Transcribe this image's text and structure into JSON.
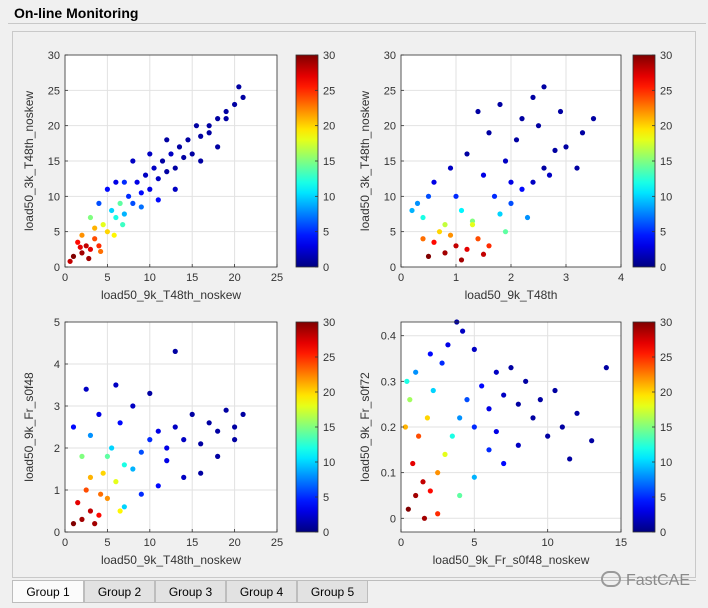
{
  "window": {
    "title": "On-line Monitoring"
  },
  "tabs": [
    {
      "label": "Group 1",
      "active": true
    },
    {
      "label": "Group 2",
      "active": false
    },
    {
      "label": "Group 3",
      "active": false
    },
    {
      "label": "Group 4",
      "active": false
    },
    {
      "label": "Group 5",
      "active": false
    }
  ],
  "watermark": {
    "text": "FastCAE"
  },
  "colormap": "jet",
  "chart_data": [
    {
      "type": "scatter",
      "title": "",
      "xlabel": "load50_9k_T48th_noskew",
      "ylabel": "load50_3k_T48th_noskew",
      "xlim": [
        0,
        25
      ],
      "ylim": [
        0,
        30
      ],
      "xticks": [
        0,
        5,
        10,
        15,
        20,
        25
      ],
      "yticks": [
        0,
        5,
        10,
        15,
        20,
        25,
        30
      ],
      "colorbar": {
        "min": 0,
        "max": 30,
        "ticks": [
          0,
          5,
          10,
          15,
          20,
          25,
          30
        ]
      },
      "grid": true,
      "points": [
        [
          2,
          2,
          29
        ],
        [
          2.5,
          3,
          28
        ],
        [
          3,
          2.5,
          27
        ],
        [
          1.5,
          3.5,
          26
        ],
        [
          3.5,
          4,
          24
        ],
        [
          2,
          4.5,
          22
        ],
        [
          4,
          3,
          25
        ],
        [
          1,
          1.5,
          30
        ],
        [
          5,
          5,
          20
        ],
        [
          4.5,
          6,
          18
        ],
        [
          6,
          7,
          12
        ],
        [
          5.5,
          8,
          10
        ],
        [
          7,
          7.5,
          9
        ],
        [
          6.5,
          9,
          14
        ],
        [
          8,
          9,
          6
        ],
        [
          7.5,
          10,
          5
        ],
        [
          9,
          10.5,
          4
        ],
        [
          8.5,
          12,
          3
        ],
        [
          10,
          11,
          3
        ],
        [
          9.5,
          13,
          2
        ],
        [
          11,
          12.5,
          2
        ],
        [
          10.5,
          14,
          2
        ],
        [
          12,
          13.5,
          1
        ],
        [
          11.5,
          15,
          1
        ],
        [
          13,
          14,
          1
        ],
        [
          12.5,
          16,
          2
        ],
        [
          14,
          15.5,
          1
        ],
        [
          13.5,
          17,
          1
        ],
        [
          15,
          16,
          1
        ],
        [
          14.5,
          18,
          1
        ],
        [
          16,
          18.5,
          1
        ],
        [
          15.5,
          20,
          1
        ],
        [
          17,
          20,
          1
        ],
        [
          18,
          21,
          1
        ],
        [
          19,
          22,
          1
        ],
        [
          20,
          23,
          1
        ],
        [
          21,
          24,
          1
        ],
        [
          20.5,
          25.5,
          1
        ],
        [
          6,
          12,
          3
        ],
        [
          4,
          9,
          6
        ],
        [
          3,
          7,
          15
        ],
        [
          8,
          15,
          2
        ],
        [
          5,
          11,
          4
        ],
        [
          12,
          18,
          1
        ],
        [
          10,
          16,
          2
        ],
        [
          7,
          12,
          5
        ],
        [
          3.5,
          5.5,
          21
        ],
        [
          2.8,
          1.2,
          29
        ],
        [
          1.8,
          2.8,
          27
        ],
        [
          4.2,
          2.2,
          23
        ],
        [
          0.6,
          0.8,
          28
        ],
        [
          5.8,
          4.5,
          19
        ],
        [
          6.8,
          6,
          13
        ],
        [
          9,
          8.5,
          7
        ],
        [
          11,
          9.5,
          4
        ],
        [
          13,
          11,
          2
        ],
        [
          16,
          15,
          1
        ],
        [
          18,
          17,
          1
        ],
        [
          17,
          19,
          1
        ],
        [
          19,
          21,
          1
        ]
      ]
    },
    {
      "type": "scatter",
      "title": "",
      "xlabel": "load50_9k_T48th",
      "ylabel": "load50_3k_T48th_noskew",
      "xlim": [
        0,
        4
      ],
      "ylim": [
        0,
        30
      ],
      "xticks": [
        0,
        1,
        2,
        3,
        4
      ],
      "yticks": [
        0,
        5,
        10,
        15,
        20,
        25,
        30
      ],
      "colorbar": {
        "min": 0,
        "max": 30,
        "ticks": [
          0,
          5,
          10,
          15,
          20,
          25,
          30
        ]
      },
      "grid": true,
      "points": [
        [
          0.8,
          2,
          29
        ],
        [
          1.0,
          3,
          28
        ],
        [
          1.2,
          2.5,
          27
        ],
        [
          0.6,
          3.5,
          26
        ],
        [
          1.4,
          4,
          24
        ],
        [
          0.9,
          4.5,
          22
        ],
        [
          1.6,
          3,
          25
        ],
        [
          0.5,
          1.5,
          30
        ],
        [
          1.1,
          1,
          29
        ],
        [
          0.7,
          5,
          20
        ],
        [
          1.3,
          6,
          18
        ],
        [
          0.4,
          7,
          12
        ],
        [
          1.8,
          7.5,
          10
        ],
        [
          0.3,
          9,
          8
        ],
        [
          2.0,
          9,
          6
        ],
        [
          1.0,
          10,
          5
        ],
        [
          2.2,
          11,
          4
        ],
        [
          0.6,
          12,
          3
        ],
        [
          1.5,
          13,
          3
        ],
        [
          2.4,
          12,
          2
        ],
        [
          0.9,
          14,
          2
        ],
        [
          1.9,
          15,
          2
        ],
        [
          2.6,
          14,
          1
        ],
        [
          1.2,
          16,
          1
        ],
        [
          2.8,
          16.5,
          1
        ],
        [
          2.1,
          18,
          1
        ],
        [
          3.0,
          17,
          1
        ],
        [
          1.6,
          19,
          1
        ],
        [
          2.5,
          20,
          1
        ],
        [
          3.3,
          19,
          1
        ],
        [
          2.2,
          21,
          1
        ],
        [
          2.9,
          22,
          1
        ],
        [
          1.8,
          23,
          1
        ],
        [
          2.6,
          25.5,
          1
        ],
        [
          3.5,
          21,
          1
        ],
        [
          2.4,
          24,
          1
        ],
        [
          1.4,
          22,
          1
        ],
        [
          0.5,
          10,
          6
        ],
        [
          0.2,
          8,
          9
        ],
        [
          1.7,
          10,
          5
        ],
        [
          1.1,
          8,
          11
        ],
        [
          2.7,
          13,
          2
        ],
        [
          3.2,
          14,
          1
        ],
        [
          2.0,
          12,
          3
        ],
        [
          1.3,
          6.5,
          15
        ],
        [
          0.8,
          6,
          17
        ],
        [
          1.9,
          5,
          14
        ],
        [
          2.3,
          7,
          8
        ],
        [
          0.4,
          4,
          23
        ],
        [
          1.5,
          1.8,
          28
        ]
      ]
    },
    {
      "type": "scatter",
      "title": "",
      "xlabel": "load50_9k_T48th_noskew",
      "ylabel": "load50_9k_Fr_s0f48",
      "xlim": [
        0,
        25
      ],
      "ylim": [
        0,
        5
      ],
      "xticks": [
        0,
        5,
        10,
        15,
        20,
        25
      ],
      "yticks": [
        0,
        1,
        2,
        3,
        4,
        5
      ],
      "colorbar": {
        "min": 0,
        "max": 30,
        "ticks": [
          0,
          5,
          10,
          15,
          20,
          25,
          30
        ]
      },
      "grid": true,
      "points": [
        [
          2,
          0.3,
          29
        ],
        [
          3,
          0.5,
          28
        ],
        [
          1.5,
          0.7,
          27
        ],
        [
          4,
          0.4,
          26
        ],
        [
          2.5,
          1.0,
          24
        ],
        [
          5,
          0.8,
          22
        ],
        [
          1,
          0.2,
          30
        ],
        [
          3.5,
          0.2,
          29
        ],
        [
          6,
          1.2,
          18
        ],
        [
          4.5,
          1.4,
          20
        ],
        [
          7,
          1.6,
          12
        ],
        [
          2,
          1.8,
          15
        ],
        [
          8,
          1.5,
          9
        ],
        [
          5.5,
          2.0,
          10
        ],
        [
          9,
          1.9,
          6
        ],
        [
          3,
          2.3,
          8
        ],
        [
          10,
          2.2,
          5
        ],
        [
          6.5,
          2.6,
          4
        ],
        [
          11,
          2.4,
          3
        ],
        [
          12,
          2.0,
          3
        ],
        [
          4,
          2.8,
          3
        ],
        [
          13,
          2.5,
          2
        ],
        [
          8,
          3.0,
          2
        ],
        [
          14,
          2.2,
          2
        ],
        [
          15,
          2.8,
          1
        ],
        [
          16,
          2.1,
          1
        ],
        [
          10,
          3.3,
          1
        ],
        [
          17,
          2.6,
          1
        ],
        [
          18,
          2.4,
          1
        ],
        [
          19,
          2.9,
          1
        ],
        [
          20,
          2.5,
          1
        ],
        [
          21,
          2.8,
          1
        ],
        [
          13,
          4.3,
          1
        ],
        [
          6,
          3.5,
          2
        ],
        [
          2.5,
          3.4,
          2
        ],
        [
          11,
          1.1,
          4
        ],
        [
          14,
          1.3,
          2
        ],
        [
          9,
          0.9,
          5
        ],
        [
          7,
          0.6,
          10
        ],
        [
          5,
          1.8,
          14
        ],
        [
          1,
          2.5,
          4
        ],
        [
          12,
          1.7,
          3
        ],
        [
          16,
          1.4,
          1
        ],
        [
          18,
          1.8,
          1
        ],
        [
          20,
          2.2,
          1
        ],
        [
          3,
          1.3,
          21
        ],
        [
          4.2,
          0.9,
          23
        ],
        [
          6.5,
          0.5,
          19
        ]
      ]
    },
    {
      "type": "scatter",
      "title": "",
      "xlabel": "load50_9k_Fr_s0f48_noskew",
      "ylabel": "load50_9k_Fr_s0f72",
      "xlim": [
        0,
        15
      ],
      "ylim": [
        -0.03,
        0.43
      ],
      "xticks": [
        0,
        5,
        10,
        15
      ],
      "yticks": [
        0,
        0.1,
        0.2,
        0.3,
        0.4
      ],
      "colorbar": {
        "min": 0,
        "max": 30,
        "ticks": [
          0,
          5,
          10,
          15,
          20,
          25,
          30
        ]
      },
      "grid": true,
      "points": [
        [
          1,
          0.05,
          29
        ],
        [
          1.5,
          0.08,
          28
        ],
        [
          0.8,
          0.12,
          27
        ],
        [
          2,
          0.06,
          26
        ],
        [
          1.2,
          0.18,
          24
        ],
        [
          2.5,
          0.1,
          22
        ],
        [
          0.5,
          0.02,
          30
        ],
        [
          1.8,
          0.22,
          20
        ],
        [
          3,
          0.14,
          18
        ],
        [
          0.6,
          0.26,
          16
        ],
        [
          3.5,
          0.18,
          12
        ],
        [
          2.2,
          0.28,
          10
        ],
        [
          4,
          0.22,
          8
        ],
        [
          1,
          0.32,
          8
        ],
        [
          4.5,
          0.26,
          6
        ],
        [
          2.8,
          0.34,
          5
        ],
        [
          5,
          0.2,
          5
        ],
        [
          3.2,
          0.38,
          3
        ],
        [
          5.5,
          0.29,
          4
        ],
        [
          6,
          0.24,
          3
        ],
        [
          2,
          0.36,
          4
        ],
        [
          6.5,
          0.32,
          2
        ],
        [
          4.2,
          0.41,
          2
        ],
        [
          7,
          0.27,
          2
        ],
        [
          3.8,
          0.43,
          1
        ],
        [
          7.5,
          0.33,
          1
        ],
        [
          8,
          0.25,
          1
        ],
        [
          5,
          0.37,
          2
        ],
        [
          8.5,
          0.3,
          1
        ],
        [
          9,
          0.22,
          1
        ],
        [
          10,
          0.18,
          1
        ],
        [
          11,
          0.2,
          1
        ],
        [
          12,
          0.23,
          1
        ],
        [
          14,
          0.33,
          1
        ],
        [
          13,
          0.17,
          1
        ],
        [
          9.5,
          0.26,
          1
        ],
        [
          10.5,
          0.28,
          1
        ],
        [
          6,
          0.15,
          5
        ],
        [
          7,
          0.12,
          4
        ],
        [
          5,
          0.09,
          9
        ],
        [
          0.4,
          0.3,
          12
        ],
        [
          0.3,
          0.2,
          21
        ],
        [
          4,
          0.05,
          14
        ],
        [
          2.5,
          0.01,
          25
        ],
        [
          6.5,
          0.19,
          3
        ],
        [
          11.5,
          0.13,
          1
        ],
        [
          8,
          0.16,
          2
        ],
        [
          1.6,
          0.0,
          29
        ]
      ]
    }
  ]
}
